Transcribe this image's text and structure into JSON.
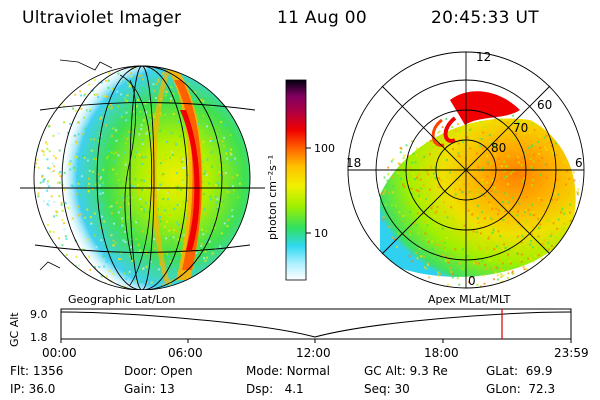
{
  "header": {
    "instrument": "Ultraviolet Imager",
    "date": "11 Aug 00",
    "time": "20:45:33 UT"
  },
  "colorbar": {
    "label": "photon cm⁻²s⁻¹",
    "ticks": [
      "100",
      "10"
    ],
    "colors": [
      "#ffffff",
      "#b0f0ff",
      "#30d8f0",
      "#30e060",
      "#a0f000",
      "#f0f000",
      "#ffc000",
      "#ff6000",
      "#f00000",
      "#b00040",
      "#800060",
      "#400040",
      "#000000"
    ]
  },
  "left_panel": {
    "caption": "Geographic Lat/Lon"
  },
  "right_panel": {
    "caption": "Apex MLat/MLT",
    "mlt_labels": {
      "top": "12",
      "left": "18",
      "right": "6",
      "bottom": "0"
    },
    "lat_labels": [
      "60",
      "70",
      "80"
    ]
  },
  "altitude_plot": {
    "ylabel": "GC Alt",
    "yticks": [
      "9.0",
      "1.8"
    ],
    "xticks": [
      "00:00",
      "06:00",
      "12:00",
      "18:00",
      "23:59"
    ],
    "marker_color": "#d00000"
  },
  "status": {
    "flt_label": "Flt:",
    "flt_value": "1356",
    "ip_label": "IP:",
    "ip_value": "36.0",
    "door_label": "Door:",
    "door_value": "Open",
    "gain_label": "Gain:",
    "gain_value": "13",
    "mode_label": "Mode:",
    "mode_value": "Normal",
    "dsp_label": "Dsp:",
    "dsp_value": "4.1",
    "gcalt_label": "GC Alt:",
    "gcalt_value": "9.3 Re",
    "seq_label": "Seq:",
    "seq_value": "30",
    "glat_label": "GLat:",
    "glat_value": "69.9",
    "glon_label": "GLon:",
    "glon_value": "72.3"
  }
}
